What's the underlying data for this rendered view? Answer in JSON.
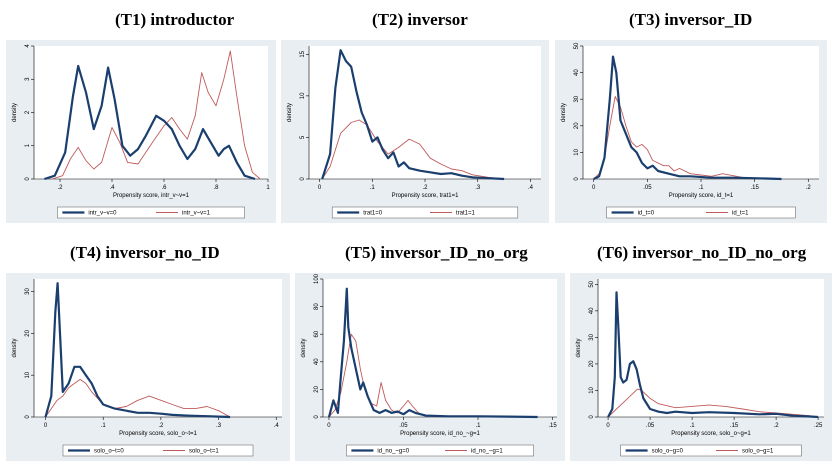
{
  "colors": {
    "series0": "#1a3f6f",
    "series1": "#c05a5a",
    "panel_bg": "#e9eef2",
    "plot_bg": "#ffffff"
  },
  "chart_data": [
    {
      "type": "line",
      "title": "(T1) introductor",
      "xlabel": "Propensity score, intr_v~v=1",
      "ylabel": "density",
      "xlim": [
        0.1,
        1.0
      ],
      "ylim": [
        0,
        4
      ],
      "xticks": [
        0.2,
        0.4,
        0.6,
        0.8,
        1.0
      ],
      "xtick_labels": [
        ".2",
        ".4",
        ".6",
        ".8",
        "1"
      ],
      "yticks": [
        0,
        1,
        2,
        3,
        4
      ],
      "ytick_labels": [
        "0",
        "1",
        "2",
        "3",
        "4"
      ],
      "legend_position": "bottom",
      "series": [
        {
          "name": "intr_v~v=0",
          "x": [
            0.14,
            0.18,
            0.22,
            0.25,
            0.27,
            0.3,
            0.33,
            0.36,
            0.385,
            0.41,
            0.44,
            0.47,
            0.5,
            0.53,
            0.57,
            0.6,
            0.63,
            0.66,
            0.69,
            0.72,
            0.75,
            0.78,
            0.81,
            0.83,
            0.85,
            0.88,
            0.91,
            0.95
          ],
          "y": [
            0,
            0.1,
            0.8,
            2.5,
            3.4,
            2.6,
            1.5,
            2.2,
            3.35,
            2.4,
            1.0,
            0.7,
            0.9,
            1.3,
            1.9,
            1.75,
            1.5,
            1.0,
            0.6,
            0.9,
            1.5,
            1.1,
            0.7,
            0.9,
            1.0,
            0.5,
            0.1,
            0
          ]
        },
        {
          "name": "intr_v~v=1",
          "x": [
            0.17,
            0.21,
            0.24,
            0.27,
            0.3,
            0.33,
            0.36,
            0.4,
            0.43,
            0.46,
            0.5,
            0.53,
            0.56,
            0.6,
            0.63,
            0.66,
            0.69,
            0.72,
            0.745,
            0.77,
            0.8,
            0.83,
            0.855,
            0.88,
            0.91,
            0.94,
            0.97
          ],
          "y": [
            0,
            0.1,
            0.6,
            0.95,
            0.55,
            0.3,
            0.5,
            1.55,
            1.1,
            0.5,
            0.45,
            0.8,
            1.15,
            1.6,
            1.85,
            1.5,
            1.2,
            1.9,
            3.2,
            2.6,
            2.2,
            3.0,
            3.85,
            2.5,
            1.0,
            0.2,
            0
          ]
        }
      ]
    },
    {
      "type": "line",
      "title": "(T2) inversor",
      "xlabel": "Propensity score, trat1=1",
      "ylabel": "density",
      "xlim": [
        -0.02,
        0.42
      ],
      "ylim": [
        0,
        16
      ],
      "xticks": [
        0,
        0.1,
        0.2,
        0.3,
        0.4
      ],
      "xtick_labels": [
        "0",
        ".1",
        ".2",
        ".3",
        ".4"
      ],
      "yticks": [
        0,
        5,
        10,
        15
      ],
      "ytick_labels": [
        "0",
        "5",
        "10",
        "15"
      ],
      "legend_position": "bottom",
      "series": [
        {
          "name": "trat1=0",
          "x": [
            0.005,
            0.02,
            0.03,
            0.04,
            0.05,
            0.06,
            0.07,
            0.08,
            0.09,
            0.1,
            0.11,
            0.12,
            0.13,
            0.14,
            0.15,
            0.16,
            0.17,
            0.19,
            0.21,
            0.23,
            0.25,
            0.27,
            0.29,
            0.32,
            0.35
          ],
          "y": [
            0,
            3,
            11,
            15.5,
            14.2,
            13.5,
            10.5,
            8,
            6.5,
            4.5,
            5,
            3.5,
            2.5,
            3.2,
            1.5,
            2,
            1.3,
            1,
            0.8,
            0.6,
            0.7,
            0.4,
            0.2,
            0.1,
            0
          ]
        },
        {
          "name": "trat1=1",
          "x": [
            0.005,
            0.02,
            0.04,
            0.06,
            0.075,
            0.09,
            0.11,
            0.13,
            0.15,
            0.17,
            0.19,
            0.21,
            0.23,
            0.25,
            0.27,
            0.29,
            0.32,
            0.35
          ],
          "y": [
            0,
            1.5,
            5.5,
            6.8,
            7.1,
            6.5,
            4.5,
            3,
            3.8,
            4.8,
            4.2,
            2.5,
            1.8,
            1.2,
            1.0,
            0.5,
            0.2,
            0
          ]
        }
      ]
    },
    {
      "type": "line",
      "title": "(T3) inversor_ID",
      "xlabel": "Propensity score, id_t=1",
      "ylabel": "density",
      "xlim": [
        -0.01,
        0.21
      ],
      "ylim": [
        0,
        50
      ],
      "xticks": [
        0,
        0.05,
        0.1,
        0.15,
        0.2
      ],
      "xtick_labels": [
        "0",
        ".05",
        ".1",
        ".15",
        ".2"
      ],
      "yticks": [
        0,
        10,
        20,
        30,
        40,
        50
      ],
      "ytick_labels": [
        "0",
        "10",
        "20",
        "30",
        "40",
        "50"
      ],
      "legend_position": "bottom",
      "series": [
        {
          "name": "id_t=0",
          "x": [
            0.0,
            0.005,
            0.01,
            0.015,
            0.018,
            0.021,
            0.025,
            0.03,
            0.035,
            0.04,
            0.045,
            0.05,
            0.055,
            0.06,
            0.07,
            0.08,
            0.09,
            0.11,
            0.13,
            0.16,
            0.175
          ],
          "y": [
            0,
            1,
            8,
            30,
            46,
            40,
            22,
            17,
            12,
            10,
            6,
            4,
            5,
            3,
            2,
            1,
            1,
            0.5,
            0.5,
            0.2,
            0
          ]
        },
        {
          "name": "id_t=1",
          "x": [
            0.0,
            0.005,
            0.01,
            0.015,
            0.02,
            0.025,
            0.03,
            0.035,
            0.04,
            0.045,
            0.05,
            0.055,
            0.06,
            0.065,
            0.07,
            0.075,
            0.08,
            0.09,
            0.1,
            0.11,
            0.12,
            0.14,
            0.16,
            0.175
          ],
          "y": [
            0,
            2,
            8,
            20,
            31,
            27,
            20,
            14,
            12,
            13,
            11,
            7,
            6,
            5,
            5,
            3,
            4,
            2,
            1.5,
            1,
            2,
            0.5,
            0.2,
            0
          ]
        }
      ]
    },
    {
      "type": "line",
      "title": "(T4) inversor_no_ID",
      "xlabel": "Propensity score, solo_o~t=1",
      "ylabel": "density",
      "xlim": [
        -0.02,
        0.41
      ],
      "ylim": [
        0,
        33
      ],
      "xticks": [
        0,
        0.1,
        0.2,
        0.3,
        0.4
      ],
      "xtick_labels": [
        "0",
        ".1",
        ".2",
        ".3",
        ".4"
      ],
      "yticks": [
        0,
        10,
        20,
        30
      ],
      "ytick_labels": [
        "0",
        "10",
        "20",
        "30"
      ],
      "legend_position": "bottom",
      "series": [
        {
          "name": "solo_o~t=0",
          "x": [
            0.0,
            0.01,
            0.017,
            0.021,
            0.025,
            0.03,
            0.04,
            0.05,
            0.06,
            0.07,
            0.08,
            0.09,
            0.1,
            0.12,
            0.14,
            0.16,
            0.18,
            0.2,
            0.22,
            0.25,
            0.28,
            0.3,
            0.32
          ],
          "y": [
            0,
            5,
            25,
            32,
            20,
            6,
            8,
            12,
            12,
            10,
            8,
            5,
            3,
            2,
            1.5,
            1,
            1,
            0.8,
            0.5,
            0.3,
            0.2,
            0.1,
            0
          ]
        },
        {
          "name": "solo_o~t=1",
          "x": [
            0.0,
            0.01,
            0.02,
            0.03,
            0.04,
            0.05,
            0.06,
            0.07,
            0.08,
            0.1,
            0.12,
            0.14,
            0.16,
            0.18,
            0.2,
            0.22,
            0.24,
            0.26,
            0.28,
            0.3,
            0.32
          ],
          "y": [
            0,
            2,
            4,
            5,
            7,
            8,
            9,
            8,
            6,
            3,
            2,
            2.5,
            4,
            5,
            4,
            3,
            2,
            2,
            2.5,
            1.5,
            0
          ]
        }
      ]
    },
    {
      "type": "line",
      "title": "(T5) inversor_ID_no_org",
      "xlabel": "Propensity score, id_no_~g=1",
      "ylabel": "density",
      "xlim": [
        -0.004,
        0.153
      ],
      "ylim": [
        0,
        100
      ],
      "xticks": [
        0,
        0.05,
        0.1,
        0.15
      ],
      "xtick_labels": [
        "0",
        ".05",
        ".1",
        ".15"
      ],
      "yticks": [
        0,
        20,
        40,
        60,
        80,
        100
      ],
      "ytick_labels": [
        "0",
        "20",
        "40",
        "60",
        "80",
        "100"
      ],
      "legend_position": "bottom",
      "series": [
        {
          "name": "id_no_~g=0",
          "x": [
            0.0,
            0.003,
            0.006,
            0.008,
            0.01,
            0.012,
            0.013,
            0.015,
            0.017,
            0.019,
            0.021,
            0.023,
            0.026,
            0.03,
            0.034,
            0.038,
            0.042,
            0.046,
            0.05,
            0.054,
            0.058,
            0.065,
            0.08,
            0.1,
            0.12,
            0.14
          ],
          "y": [
            0,
            12,
            3,
            30,
            55,
            93,
            65,
            50,
            40,
            30,
            20,
            25,
            15,
            5,
            3,
            5,
            3,
            4,
            2,
            5,
            3,
            1,
            0.5,
            0.5,
            0.3,
            0
          ]
        },
        {
          "name": "id_no_~g=1",
          "x": [
            0.0,
            0.004,
            0.008,
            0.012,
            0.015,
            0.018,
            0.021,
            0.024,
            0.028,
            0.032,
            0.035,
            0.038,
            0.042,
            0.046,
            0.05,
            0.053,
            0.056,
            0.06,
            0.065,
            0.07,
            0.075
          ],
          "y": [
            0,
            5,
            18,
            40,
            60,
            55,
            35,
            20,
            10,
            8,
            25,
            12,
            5,
            3,
            8,
            12,
            8,
            3,
            1,
            0.5,
            0
          ]
        }
      ]
    },
    {
      "type": "line",
      "title": "(T6) inversor_no_ID_no_org",
      "xlabel": "Propensity score, solo_o~g=1",
      "ylabel": "density",
      "xlim": [
        -0.012,
        0.257
      ],
      "ylim": [
        0,
        52
      ],
      "xticks": [
        0,
        0.05,
        0.1,
        0.15,
        0.2,
        0.25
      ],
      "xtick_labels": [
        "0",
        ".05",
        ".1",
        ".15",
        ".2",
        ".25"
      ],
      "yticks": [
        0,
        10,
        20,
        30,
        40,
        50
      ],
      "ytick_labels": [
        "0",
        "10",
        "20",
        "30",
        "40",
        "50"
      ],
      "legend_position": "bottom",
      "series": [
        {
          "name": "solo_o~g=0",
          "x": [
            0.0,
            0.005,
            0.008,
            0.01,
            0.012,
            0.015,
            0.018,
            0.022,
            0.026,
            0.03,
            0.034,
            0.038,
            0.042,
            0.05,
            0.06,
            0.07,
            0.08,
            0.1,
            0.12,
            0.15,
            0.18,
            0.2,
            0.22,
            0.24,
            0.25
          ],
          "y": [
            0,
            3,
            15,
            47,
            35,
            15,
            13,
            14,
            20,
            21,
            18,
            12,
            7,
            3,
            2,
            1.5,
            2,
            1.5,
            1.8,
            1.5,
            1,
            1.2,
            0.5,
            0.2,
            0
          ]
        },
        {
          "name": "solo_o~g=1",
          "x": [
            0.0,
            0.01,
            0.02,
            0.03,
            0.035,
            0.04,
            0.05,
            0.06,
            0.08,
            0.1,
            0.12,
            0.14,
            0.16,
            0.18,
            0.2,
            0.22,
            0.24,
            0.25
          ],
          "y": [
            0,
            3,
            6,
            9,
            10.5,
            10,
            7,
            5,
            3.5,
            4,
            4.5,
            4,
            3,
            2,
            1.5,
            1,
            0.5,
            0
          ]
        }
      ]
    }
  ]
}
